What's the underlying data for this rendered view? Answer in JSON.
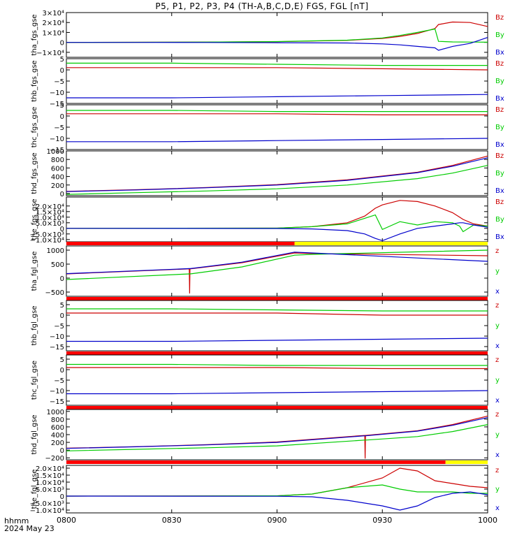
{
  "title": "P5, P1, P2, P3, P4 (TH-A,B,C,D,E) FGS, FGL [nT]",
  "footer": {
    "axis_label": "hhmm",
    "date": "2024 May 23",
    "time_ticks": [
      "0800",
      "0830",
      "0900",
      "0930",
      "1000"
    ]
  },
  "colors": {
    "x": "#0000cc",
    "y": "#00cc00",
    "z": "#cc0000",
    "bar_red": "#ff0000",
    "bar_yellow": "#ffff00"
  },
  "chart_data": [
    {
      "type": "line",
      "ylabel": "tha_fgs_gse",
      "ylim": [
        -15000,
        30000
      ],
      "ticks": [
        {
          "v": 30000,
          "t": "3×10⁴"
        },
        {
          "v": 20000,
          "t": "2×10⁴"
        },
        {
          "v": 10000,
          "t": "1×10⁴"
        },
        {
          "v": 0,
          "t": "0"
        },
        {
          "v": -10000,
          "t": "−1×10⁴"
        }
      ],
      "legend": [
        "Bz",
        "By",
        "Bx"
      ],
      "x": [
        0,
        20,
        40,
        60,
        80,
        90,
        95,
        100,
        105,
        106,
        110,
        115,
        120
      ],
      "series": [
        {
          "key": "z",
          "values": [
            0,
            100,
            300,
            700,
            2000,
            4000,
            6000,
            9000,
            14000,
            18000,
            20500,
            20000,
            16000
          ]
        },
        {
          "key": "y",
          "values": [
            0,
            100,
            300,
            800,
            2200,
            4500,
            7000,
            10000,
            13500,
            1000,
            500,
            300,
            200
          ]
        },
        {
          "key": "x",
          "values": [
            0,
            0,
            -100,
            -300,
            -600,
            -1500,
            -2500,
            -4000,
            -5500,
            -8000,
            -4000,
            -1000,
            5000
          ]
        }
      ]
    },
    {
      "type": "line",
      "ylabel": "thb_fgs_gse",
      "ylim": [
        -15,
        5
      ],
      "ticks": [
        {
          "v": 5,
          "t": "5"
        },
        {
          "v": 0,
          "t": "0"
        },
        {
          "v": -5,
          "t": "−5"
        },
        {
          "v": -10,
          "t": "−10"
        },
        {
          "v": -15,
          "t": "−15"
        }
      ],
      "legend": [
        "Bz",
        "By",
        "Bx"
      ],
      "x": [
        0,
        30,
        60,
        90,
        120
      ],
      "series": [
        {
          "key": "z",
          "values": [
            1,
            1,
            1,
            0.5,
            0
          ]
        },
        {
          "key": "y",
          "values": [
            3,
            3,
            2.5,
            2,
            2
          ]
        },
        {
          "key": "x",
          "values": [
            -12.5,
            -12.5,
            -12,
            -11.5,
            -11
          ]
        }
      ]
    },
    {
      "type": "line",
      "ylabel": "thc_fgs_gse",
      "ylim": [
        -15,
        5
      ],
      "ticks": [
        {
          "v": 5,
          "t": "5"
        },
        {
          "v": 0,
          "t": "0"
        },
        {
          "v": -5,
          "t": "−5"
        },
        {
          "v": -10,
          "t": "−10"
        },
        {
          "v": -15,
          "t": "−15"
        }
      ],
      "legend": [
        "Bz",
        "By",
        "Bx"
      ],
      "x": [
        0,
        30,
        60,
        90,
        120
      ],
      "series": [
        {
          "key": "z",
          "values": [
            1,
            1,
            1,
            0.5,
            0.5
          ]
        },
        {
          "key": "y",
          "values": [
            2.5,
            2.5,
            2,
            2,
            2
          ]
        },
        {
          "key": "x",
          "values": [
            -11.5,
            -11.5,
            -11,
            -10.5,
            -10
          ]
        }
      ]
    },
    {
      "type": "line",
      "ylabel": "thd_fgs_gse",
      "ylim": [
        -50,
        1000
      ],
      "ticks": [
        {
          "v": 1000,
          "t": "1000"
        },
        {
          "v": 800,
          "t": "800"
        },
        {
          "v": 600,
          "t": "600"
        },
        {
          "v": 400,
          "t": "400"
        },
        {
          "v": 200,
          "t": "200"
        },
        {
          "v": 0,
          "t": "0"
        }
      ],
      "legend": [
        "Bz",
        "By",
        "Bx"
      ],
      "x": [
        0,
        20,
        40,
        60,
        80,
        100,
        110,
        120
      ],
      "series": [
        {
          "key": "z",
          "values": [
            50,
            90,
            140,
            210,
            320,
            500,
            660,
            880
          ]
        },
        {
          "key": "y",
          "values": [
            -20,
            20,
            60,
            110,
            200,
            350,
            480,
            660
          ]
        },
        {
          "key": "x",
          "values": [
            45,
            85,
            135,
            200,
            310,
            490,
            640,
            840
          ]
        }
      ]
    },
    {
      "type": "line",
      "ylabel": "the_fgs_gse",
      "ylim": [
        -12000,
        28000
      ],
      "ticks": [
        {
          "v": 20000,
          "t": "2.0×10⁴"
        },
        {
          "v": 15000,
          "t": "1.5×10⁴"
        },
        {
          "v": 10000,
          "t": "1.0×10⁴"
        },
        {
          "v": 5000,
          "t": "5.0×10³"
        },
        {
          "v": 0,
          "t": "0"
        },
        {
          "v": -5000,
          "t": "−5.0×10³"
        },
        {
          "v": -10000,
          "t": "−1.0×10⁴"
        }
      ],
      "legend": [
        "Bz",
        "By",
        "Bx"
      ],
      "x": [
        0,
        60,
        70,
        80,
        85,
        88,
        90,
        95,
        100,
        105,
        110,
        112,
        113,
        116,
        120
      ],
      "series": [
        {
          "key": "z",
          "values": [
            0,
            200,
            1500,
            5000,
            11000,
            18000,
            21000,
            25000,
            24000,
            20000,
            14000,
            10000,
            8000,
            4000,
            2000
          ]
        },
        {
          "key": "y",
          "values": [
            0,
            200,
            1500,
            4000,
            9000,
            12000,
            -1000,
            6000,
            3000,
            6000,
            5000,
            2000,
            -3000,
            3000,
            2000
          ]
        },
        {
          "key": "x",
          "values": [
            0,
            -100,
            -500,
            -2000,
            -5000,
            -9000,
            -11000,
            -5000,
            0,
            2000,
            4000,
            5000,
            5000,
            3000,
            1000
          ]
        }
      ]
    },
    {
      "type": "line",
      "ylabel": "tha_fgl_gse",
      "ylim": [
        -650,
        1150
      ],
      "ticks": [
        {
          "v": 1000,
          "t": "1000"
        },
        {
          "v": 500,
          "t": "500"
        },
        {
          "v": 0,
          "t": "0"
        },
        {
          "v": -500,
          "t": "−500"
        }
      ],
      "legend": [
        "z",
        "y",
        "x"
      ],
      "status_bar": [
        {
          "from": 0,
          "to": 65,
          "color": "red"
        },
        {
          "from": 65,
          "to": 120,
          "color": "yellow"
        }
      ],
      "x": [
        0,
        35,
        35.1,
        35.2,
        35.3,
        50,
        65,
        70,
        120
      ],
      "series": [
        {
          "key": "z",
          "values": [
            150,
            330,
            -550,
            330,
            330,
            550,
            900,
            880,
            800
          ]
        },
        {
          "key": "y",
          "values": [
            -50,
            150,
            150,
            150,
            150,
            400,
            820,
            850,
            1000
          ]
        },
        {
          "key": "x",
          "values": [
            160,
            340,
            340,
            340,
            340,
            570,
            930,
            900,
            600
          ]
        }
      ]
    },
    {
      "type": "line",
      "ylabel": "thb_fgl_gse",
      "ylim": [
        -17,
        7
      ],
      "ticks": [
        {
          "v": 5,
          "t": "5"
        },
        {
          "v": 0,
          "t": "0"
        },
        {
          "v": -5,
          "t": "−5"
        },
        {
          "v": -10,
          "t": "−10"
        },
        {
          "v": -15,
          "t": "−15"
        }
      ],
      "legend": [
        "z",
        "y",
        "x"
      ],
      "status_bar": [
        {
          "from": 0,
          "to": 120,
          "color": "red"
        }
      ],
      "x": [
        0,
        30,
        60,
        90,
        120
      ],
      "series": [
        {
          "key": "z",
          "values": [
            1,
            1,
            1,
            0,
            0
          ]
        },
        {
          "key": "y",
          "values": [
            3,
            3,
            2.5,
            2,
            2
          ]
        },
        {
          "key": "x",
          "values": [
            -12.5,
            -12.5,
            -12,
            -11.5,
            -11
          ]
        }
      ]
    },
    {
      "type": "line",
      "ylabel": "thc_fgl_gse",
      "ylim": [
        -17,
        7
      ],
      "ticks": [
        {
          "v": 5,
          "t": "5"
        },
        {
          "v": 0,
          "t": "0"
        },
        {
          "v": -5,
          "t": "−5"
        },
        {
          "v": -10,
          "t": "−10"
        },
        {
          "v": -15,
          "t": "−15"
        }
      ],
      "legend": [
        "z",
        "y",
        "x"
      ],
      "status_bar": [
        {
          "from": 0,
          "to": 120,
          "color": "red"
        }
      ],
      "x": [
        0,
        30,
        60,
        90,
        120
      ],
      "series": [
        {
          "key": "z",
          "values": [
            1,
            1,
            1,
            0.5,
            0.5
          ]
        },
        {
          "key": "y",
          "values": [
            2.5,
            2.5,
            2,
            2,
            2
          ]
        },
        {
          "key": "x",
          "values": [
            -11.5,
            -11.5,
            -11,
            -10.5,
            -10
          ]
        }
      ]
    },
    {
      "type": "line",
      "ylabel": "thd_fgl_gse",
      "ylim": [
        -250,
        1050
      ],
      "ticks": [
        {
          "v": 1000,
          "t": "1000"
        },
        {
          "v": 800,
          "t": "800"
        },
        {
          "v": 600,
          "t": "600"
        },
        {
          "v": 400,
          "t": "400"
        },
        {
          "v": 200,
          "t": "200"
        },
        {
          "v": 0,
          "t": "0"
        },
        {
          "v": -200,
          "t": "−200"
        }
      ],
      "legend": [
        "z",
        "y",
        "x"
      ],
      "status_bar": [
        {
          "from": 0,
          "to": 120,
          "color": "red"
        }
      ],
      "x": [
        0,
        20,
        40,
        60,
        85,
        85.1,
        85.2,
        85.3,
        100,
        110,
        120
      ],
      "series": [
        {
          "key": "z",
          "values": [
            50,
            90,
            140,
            210,
            380,
            -220,
            380,
            380,
            500,
            660,
            880
          ]
        },
        {
          "key": "y",
          "values": [
            -20,
            20,
            60,
            110,
            260,
            260,
            260,
            260,
            350,
            480,
            660
          ]
        },
        {
          "key": "x",
          "values": [
            45,
            85,
            135,
            200,
            370,
            370,
            370,
            370,
            490,
            640,
            840
          ]
        }
      ]
    },
    {
      "type": "line",
      "ylabel": "the_fgl_gse",
      "ylim": [
        -12000,
        22000
      ],
      "ticks": [
        {
          "v": 20000,
          "t": "2.0×10⁴"
        },
        {
          "v": 15000,
          "t": "1.5×10⁴"
        },
        {
          "v": 10000,
          "t": "1.0×10⁴"
        },
        {
          "v": 5000,
          "t": "5.0×10³"
        },
        {
          "v": 0,
          "t": "0"
        },
        {
          "v": -5000,
          "t": "−5.0×10³"
        },
        {
          "v": -10000,
          "t": "−1.0×10⁴"
        }
      ],
      "legend": [
        "z",
        "y",
        "x"
      ],
      "status_bar": [
        {
          "from": 0,
          "to": 108,
          "color": "red"
        },
        {
          "from": 108,
          "to": 120,
          "color": "yellow"
        }
      ],
      "x": [
        0,
        60,
        70,
        80,
        90,
        95,
        100,
        105,
        110,
        115,
        120
      ],
      "series": [
        {
          "key": "z",
          "values": [
            0,
            200,
            1500,
            6000,
            13000,
            20000,
            18000,
            11000,
            9000,
            7000,
            6000
          ]
        },
        {
          "key": "y",
          "values": [
            0,
            200,
            1500,
            6000,
            8000,
            5000,
            3000,
            3000,
            3000,
            2000,
            2000
          ]
        },
        {
          "key": "x",
          "values": [
            0,
            -100,
            -500,
            -3000,
            -7000,
            -10000,
            -7000,
            -1000,
            2000,
            3000,
            1000
          ]
        }
      ]
    }
  ]
}
